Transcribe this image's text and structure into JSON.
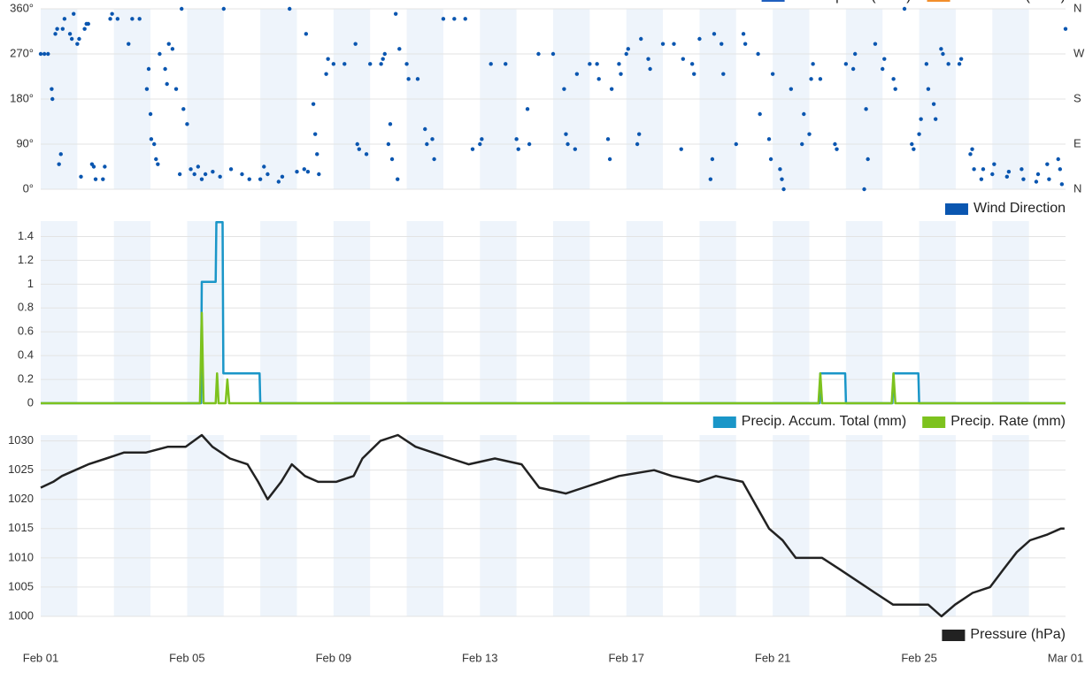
{
  "header_legend": [
    {
      "name": "Wind Speed (km/h)",
      "color": "#1f5fbf"
    },
    {
      "name": "Wind Gust (km/h)",
      "color": "#f28e2b"
    }
  ],
  "chart_data": [
    {
      "type": "scatter",
      "xlim": [
        0,
        28
      ],
      "ylim": [
        0,
        360
      ],
      "yticks": [
        {
          "value": 0,
          "label": "0°"
        },
        {
          "value": 90,
          "label": "90°"
        },
        {
          "value": 180,
          "label": "180°"
        },
        {
          "value": 270,
          "label": "270°"
        },
        {
          "value": 360,
          "label": "360°"
        }
      ],
      "y2lim": [
        0,
        360
      ],
      "y2ticks": [
        {
          "value": 0,
          "label": "N"
        },
        {
          "value": 90,
          "label": "E"
        },
        {
          "value": 180,
          "label": "S"
        },
        {
          "value": 270,
          "label": "W"
        },
        {
          "value": 360,
          "label": "N"
        }
      ],
      "grid": true,
      "series": [
        {
          "name": "Wind Direction",
          "color": "#0a56b0",
          "x": [
            0,
            0.1,
            0.2,
            0.3,
            0.32,
            0.4,
            0.45,
            0.5,
            0.55,
            0.6,
            0.65,
            0.8,
            0.85,
            0.9,
            1.0,
            1.05,
            1.1,
            1.2,
            1.25,
            1.3,
            1.4,
            1.45,
            1.5,
            1.7,
            1.75,
            1.9,
            1.95,
            2.1,
            2.4,
            2.5,
            2.7,
            2.9,
            2.95,
            3.0,
            3.02,
            3.1,
            3.15,
            3.2,
            3.25,
            3.4,
            3.45,
            3.5,
            3.6,
            3.7,
            3.8,
            3.85,
            3.9,
            4.0,
            4.1,
            4.2,
            4.3,
            4.4,
            4.5,
            4.7,
            4.9,
            5.0,
            5.2,
            5.5,
            5.7,
            6.0,
            6.1,
            6.2,
            6.5,
            6.6,
            6.8,
            7.0,
            7.2,
            7.25,
            7.3,
            7.45,
            7.5,
            7.55,
            7.6,
            7.8,
            7.85,
            8.0,
            8.3,
            8.6,
            8.65,
            8.7,
            8.9,
            9.0,
            9.3,
            9.35,
            9.4,
            9.5,
            9.55,
            9.6,
            9.7,
            9.75,
            9.8,
            10.0,
            10.05,
            10.3,
            10.5,
            10.55,
            10.7,
            10.75,
            11.0,
            11.3,
            11.6,
            11.8,
            12.0,
            12.05,
            12.3,
            12.7,
            13.0,
            13.05,
            13.3,
            13.35,
            13.6,
            14.0,
            14.3,
            14.35,
            14.4,
            14.6,
            14.65,
            15.0,
            15.2,
            15.25,
            15.5,
            15.55,
            15.6,
            15.8,
            15.85,
            16.0,
            16.05,
            16.3,
            16.35,
            16.4,
            16.6,
            16.65,
            17.0,
            17.3,
            17.5,
            17.55,
            17.8,
            17.85,
            18.0,
            18.3,
            18.35,
            18.4,
            18.6,
            18.65,
            19.0,
            19.2,
            19.25,
            19.6,
            19.65,
            19.9,
            19.95,
            20.0,
            20.2,
            20.25,
            20.3,
            20.5,
            20.8,
            20.85,
            21.0,
            21.05,
            21.1,
            21.3,
            21.7,
            21.75,
            22.0,
            22.2,
            22.25,
            22.5,
            22.55,
            22.6,
            22.8,
            23.0,
            23.05,
            23.3,
            23.35,
            23.6,
            23.8,
            23.85,
            24.0,
            24.05,
            24.2,
            24.25,
            24.4,
            24.45,
            24.6,
            24.65,
            24.8,
            25.1,
            25.15,
            25.4,
            25.45,
            25.5,
            25.7,
            25.75,
            26.0,
            26.05,
            26.4,
            26.45,
            26.8,
            26.85,
            27.2,
            27.25,
            27.5,
            27.55,
            27.8,
            27.85,
            27.9,
            28
          ],
          "values": [
            270,
            270,
            270,
            200,
            180,
            310,
            320,
            50,
            70,
            320,
            340,
            310,
            300,
            350,
            290,
            300,
            25,
            320,
            330,
            330,
            50,
            45,
            20,
            20,
            45,
            340,
            350,
            340,
            290,
            340,
            340,
            200,
            240,
            150,
            100,
            90,
            60,
            50,
            270,
            240,
            210,
            290,
            280,
            200,
            30,
            360,
            160,
            130,
            40,
            30,
            45,
            20,
            30,
            35,
            25,
            360,
            40,
            30,
            20,
            20,
            45,
            30,
            15,
            25,
            360,
            35,
            40,
            310,
            35,
            170,
            110,
            70,
            30,
            230,
            260,
            250,
            250,
            290,
            90,
            80,
            70,
            250,
            250,
            260,
            270,
            90,
            130,
            60,
            350,
            20,
            280,
            250,
            220,
            220,
            120,
            90,
            100,
            60,
            340,
            340,
            340,
            80,
            90,
            100,
            250,
            250,
            100,
            80,
            160,
            90,
            270,
            270,
            200,
            110,
            90,
            80,
            230,
            250,
            250,
            220,
            100,
            60,
            200,
            250,
            230,
            270,
            280,
            90,
            110,
            300,
            260,
            240,
            290,
            290,
            80,
            260,
            250,
            230,
            300,
            20,
            60,
            310,
            290,
            230,
            90,
            310,
            290,
            270,
            150,
            100,
            60,
            230,
            40,
            20,
            0,
            200,
            90,
            150,
            110,
            220,
            250,
            220,
            90,
            80,
            250,
            240,
            270,
            0,
            160,
            60,
            290,
            240,
            260,
            220,
            200,
            360,
            90,
            80,
            110,
            140,
            250,
            200,
            170,
            140,
            280,
            270,
            250,
            250,
            260,
            70,
            80,
            40,
            20,
            40,
            30,
            50,
            25,
            35,
            40,
            20,
            15,
            30,
            50,
            20,
            60,
            40,
            10,
            320
          ]
        }
      ]
    },
    {
      "type": "line",
      "xlim": [
        0,
        28
      ],
      "ylim": [
        0,
        1.53
      ],
      "yticks": [
        0,
        0.2,
        0.4,
        0.6,
        0.8,
        1,
        1.2,
        1.4
      ],
      "grid": true,
      "series": [
        {
          "name": "Precip. Accum. Total (mm)",
          "color": "#1a96c8",
          "x": [
            0,
            4.38,
            4.4,
            4.78,
            4.8,
            4.97,
            4.99,
            5.98,
            6.0,
            21.28,
            21.3,
            21.98,
            22.0,
            23.27,
            23.3,
            23.98,
            24.0,
            28
          ],
          "values": [
            0,
            0,
            1.02,
            1.02,
            1.52,
            1.52,
            0.25,
            0.25,
            0,
            0,
            0.25,
            0.25,
            0,
            0,
            0.25,
            0.25,
            0,
            0
          ]
        },
        {
          "name": "Precip. Rate (mm)",
          "color": "#7dc21e",
          "x": [
            0,
            4.35,
            4.4,
            4.45,
            4.78,
            4.82,
            4.86,
            5.05,
            5.1,
            5.15,
            21.25,
            21.3,
            21.35,
            23.25,
            23.3,
            23.35,
            28
          ],
          "values": [
            0,
            0,
            0.76,
            0,
            0,
            0.25,
            0,
            0,
            0.2,
            0,
            0,
            0.25,
            0,
            0,
            0.25,
            0,
            0
          ]
        }
      ]
    },
    {
      "type": "line",
      "xlim": [
        0,
        28
      ],
      "ylim": [
        1000,
        1031
      ],
      "yticks": [
        1000,
        1005,
        1010,
        1015,
        1020,
        1025,
        1030
      ],
      "xticks": [
        {
          "value": 0,
          "label": "Feb 01"
        },
        {
          "value": 4,
          "label": "Feb 05"
        },
        {
          "value": 8,
          "label": "Feb 09"
        },
        {
          "value": 12,
          "label": "Feb 13"
        },
        {
          "value": 16,
          "label": "Feb 17"
        },
        {
          "value": 20,
          "label": "Feb 21"
        },
        {
          "value": 24,
          "label": "Feb 25"
        },
        {
          "value": 28,
          "label": "Mar 01"
        }
      ],
      "grid": true,
      "series": [
        {
          "name": "Pressure (hPa)",
          "color": "#222222",
          "x": [
            0,
            0.34,
            0.58,
            0.94,
            1.3,
            1.79,
            2.27,
            2.87,
            3.48,
            3.96,
            4.4,
            4.69,
            5.17,
            5.65,
            5.94,
            6.2,
            6.57,
            6.86,
            7.22,
            7.58,
            8.07,
            8.55,
            8.79,
            9.28,
            9.76,
            10.24,
            10.72,
            11.2,
            11.69,
            12.41,
            13.14,
            13.62,
            14.35,
            14.83,
            15.31,
            15.8,
            16.76,
            17.25,
            17.97,
            18.45,
            19.18,
            19.54,
            19.9,
            20.27,
            20.63,
            21.35,
            21.84,
            22.32,
            22.8,
            23.29,
            23.77,
            24.25,
            24.61,
            24.98,
            25.46,
            25.94,
            26.3,
            26.67,
            27.03,
            27.51,
            27.87,
            27.97
          ],
          "values": [
            1022,
            1023,
            1024,
            1025,
            1026,
            1027,
            1028,
            1028,
            1029,
            1029,
            1031,
            1029,
            1027,
            1026,
            1023,
            1020,
            1023,
            1026,
            1024,
            1023,
            1023,
            1024,
            1027,
            1030,
            1031,
            1029,
            1028,
            1027,
            1026,
            1027,
            1026,
            1022,
            1021,
            1022,
            1023,
            1024,
            1025,
            1024,
            1023,
            1024,
            1023,
            1019,
            1015,
            1013,
            1010,
            1010,
            1008,
            1006,
            1004,
            1002,
            1002,
            1002,
            1000,
            1002,
            1004,
            1005,
            1008,
            1011,
            1013,
            1014,
            1015,
            1015
          ]
        }
      ]
    }
  ]
}
